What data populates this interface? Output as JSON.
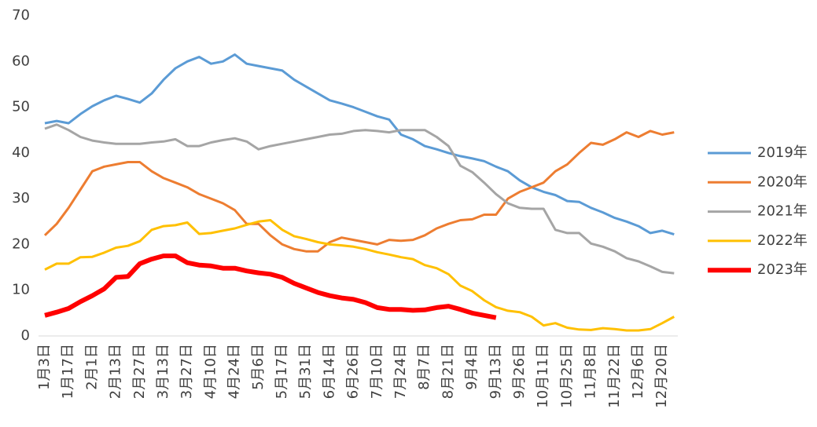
{
  "chart_data": {
    "type": "line",
    "categories": [
      "1月3日",
      null,
      "1月17日",
      null,
      "2月1日",
      null,
      "2月13日",
      null,
      "2月27日",
      null,
      "3月13日",
      null,
      "3月27日",
      null,
      "4月10日",
      null,
      "4月24日",
      null,
      "5月6日",
      null,
      "5月17日",
      null,
      "5月31日",
      null,
      "6月14日",
      null,
      "6月26日",
      null,
      "7月10日",
      null,
      "7月24日",
      null,
      "8月7日",
      null,
      "8月21日",
      null,
      "9月4日",
      null,
      "9月13日",
      null,
      "9月26日",
      null,
      "10月11日",
      null,
      "10月25日",
      null,
      "11月8日",
      null,
      "11月22日",
      null,
      "12月6日",
      null,
      "12月20日",
      null
    ],
    "ylim": [
      0,
      70
    ],
    "yticks": [
      0,
      10,
      20,
      30,
      40,
      50,
      60,
      70
    ],
    "grid": false,
    "legend": "right",
    "series": [
      {
        "name": "2019年",
        "color": "#5b9bd5",
        "width": 3,
        "values": [
          46.5,
          47,
          46.5,
          48.5,
          50.2,
          51.5,
          52.5,
          51.8,
          51,
          53,
          56,
          58.5,
          60,
          61,
          59.5,
          60,
          61.5,
          59.5,
          59,
          58.5,
          58,
          56,
          54.5,
          53,
          51.5,
          50.8,
          50,
          49,
          48,
          47.3,
          44,
          43,
          41.5,
          40.8,
          40,
          39.3,
          38.8,
          38.2,
          37,
          36,
          34,
          32.5,
          31.5,
          30.8,
          29.5,
          29.3,
          28,
          27,
          25.8,
          25,
          24,
          22.5,
          23,
          22.2
        ]
      },
      {
        "name": "2020年",
        "color": "#ed7d31",
        "width": 3,
        "values": [
          22,
          24.5,
          28,
          32,
          36,
          37,
          37.5,
          38,
          38,
          36,
          34.5,
          33.5,
          32.5,
          31,
          30,
          29,
          27.5,
          24.5,
          24.5,
          22,
          20,
          19,
          18.5,
          18.5,
          20.5,
          21.5,
          21,
          20.5,
          20,
          21,
          20.8,
          21,
          22,
          23.5,
          24.5,
          25.3,
          25.5,
          26.5,
          26.5,
          30,
          31.5,
          32.5,
          33.5,
          36,
          37.5,
          40,
          42.2,
          41.8,
          43,
          44.5,
          43.5,
          44.8,
          44,
          44.5
        ]
      },
      {
        "name": "2021年",
        "color": "#a5a5a5",
        "width": 3,
        "values": [
          45.3,
          46.2,
          45,
          43.5,
          42.7,
          42.3,
          42,
          42,
          42,
          42.3,
          42.5,
          43,
          41.5,
          41.5,
          42.3,
          42.8,
          43.2,
          42.5,
          40.8,
          41.5,
          42,
          42.5,
          43,
          43.5,
          44,
          44.2,
          44.8,
          45,
          44.8,
          44.5,
          45,
          45,
          45,
          43.5,
          41.5,
          37.2,
          35.8,
          33.5,
          31,
          29,
          28,
          27.8,
          27.8,
          23.2,
          22.5,
          22.5,
          20.2,
          19.5,
          18.5,
          17,
          16.3,
          15.2,
          14,
          13.7
        ]
      },
      {
        "name": "2022年",
        "color": "#ffc000",
        "width": 3,
        "values": [
          14.5,
          15.8,
          15.8,
          17.2,
          17.3,
          18.2,
          19.3,
          19.7,
          20.7,
          23.2,
          24,
          24.2,
          24.8,
          22.3,
          22.5,
          23,
          23.5,
          24.3,
          25,
          25.3,
          23.2,
          21.8,
          21.2,
          20.5,
          20,
          19.8,
          19.5,
          19,
          18.3,
          17.8,
          17.2,
          16.8,
          15.5,
          14.8,
          13.5,
          11,
          9.8,
          7.8,
          6.3,
          5.5,
          5.2,
          4.2,
          2.3,
          2.8,
          1.8,
          1.4,
          1.3,
          1.7,
          1.5,
          1.2,
          1.2,
          1.5,
          2.8,
          4.2
        ]
      },
      {
        "name": "2023年",
        "color": "#ff0000",
        "width": 6,
        "values": [
          4.5,
          5.2,
          6,
          7.5,
          8.8,
          10.3,
          12.8,
          13,
          15.8,
          16.8,
          17.5,
          17.5,
          16,
          15.5,
          15.3,
          14.8,
          14.8,
          14.2,
          13.8,
          13.5,
          12.8,
          11.5,
          10.5,
          9.5,
          8.8,
          8.3,
          8,
          7.3,
          6.2,
          5.8,
          5.8,
          5.6,
          5.7,
          6.2,
          6.5,
          5.8,
          5,
          4.5,
          4,
          null,
          null,
          null,
          null,
          null,
          null,
          null,
          null,
          null,
          null,
          null,
          null,
          null,
          null,
          null
        ]
      }
    ]
  }
}
